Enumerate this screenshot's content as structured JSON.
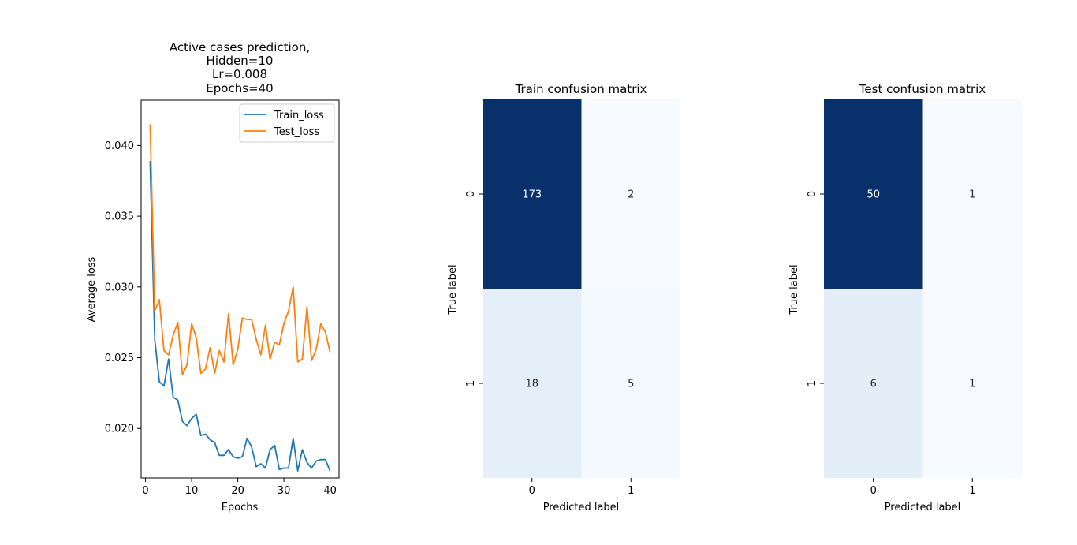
{
  "chart_data": [
    {
      "type": "line",
      "title": [
        "Active cases prediction,",
        "Hidden=10",
        "Lr=0.008",
        "Epochs=40"
      ],
      "xlabel": "Epochs",
      "ylabel": "Average loss",
      "xlim": [
        -0.95,
        41.95
      ],
      "ylim": [
        0.0165,
        0.0432
      ],
      "xticks": [
        0,
        10,
        20,
        30,
        40
      ],
      "yticks": [
        0.02,
        0.025,
        0.03,
        0.035,
        0.04
      ],
      "ytick_labels": [
        "0.020",
        "0.025",
        "0.030",
        "0.035",
        "0.040"
      ],
      "legend_position": "top-right",
      "grid": false,
      "x": [
        1,
        2,
        3,
        4,
        5,
        6,
        7,
        8,
        9,
        10,
        11,
        12,
        13,
        14,
        15,
        16,
        17,
        18,
        19,
        20,
        21,
        22,
        23,
        24,
        25,
        26,
        27,
        28,
        29,
        30,
        31,
        32,
        33,
        34,
        35,
        36,
        37,
        38,
        39,
        40
      ],
      "series": [
        {
          "name": "Train_loss",
          "color": "#1f77b4",
          "values": [
            0.0389,
            0.0263,
            0.0233,
            0.023,
            0.0249,
            0.0222,
            0.022,
            0.0205,
            0.0202,
            0.0207,
            0.021,
            0.0195,
            0.0196,
            0.0192,
            0.019,
            0.0181,
            0.0181,
            0.0185,
            0.018,
            0.0179,
            0.018,
            0.0193,
            0.0187,
            0.0173,
            0.0175,
            0.0172,
            0.0185,
            0.0188,
            0.0171,
            0.0172,
            0.0172,
            0.0193,
            0.017,
            0.0185,
            0.0176,
            0.0172,
            0.0177,
            0.0178,
            0.0178,
            0.017
          ]
        },
        {
          "name": "Test_loss",
          "color": "#ff7f0e",
          "values": [
            0.0415,
            0.0283,
            0.0291,
            0.0255,
            0.0252,
            0.0266,
            0.0275,
            0.0238,
            0.0245,
            0.0274,
            0.0264,
            0.0239,
            0.0242,
            0.0257,
            0.0239,
            0.0255,
            0.0247,
            0.0281,
            0.0245,
            0.0256,
            0.0278,
            0.0277,
            0.0277,
            0.0263,
            0.0252,
            0.0273,
            0.0249,
            0.0261,
            0.0259,
            0.0274,
            0.0283,
            0.03,
            0.0247,
            0.0249,
            0.0286,
            0.0248,
            0.0256,
            0.0274,
            0.0268,
            0.0254
          ]
        }
      ]
    },
    {
      "type": "heatmap",
      "title": "Train confusion matrix",
      "xlabel": "Predicted label",
      "ylabel": "True label",
      "x_categories": [
        "0",
        "1"
      ],
      "y_categories": [
        "0",
        "1"
      ],
      "values": [
        [
          173,
          2
        ],
        [
          18,
          5
        ]
      ],
      "colormap": "Blues"
    },
    {
      "type": "heatmap",
      "title": "Test confusion matrix",
      "xlabel": "Predicted label",
      "ylabel": "True label",
      "x_categories": [
        "0",
        "1"
      ],
      "y_categories": [
        "0",
        "1"
      ],
      "values": [
        [
          50,
          1
        ],
        [
          6,
          1
        ]
      ],
      "colormap": "Blues"
    }
  ]
}
